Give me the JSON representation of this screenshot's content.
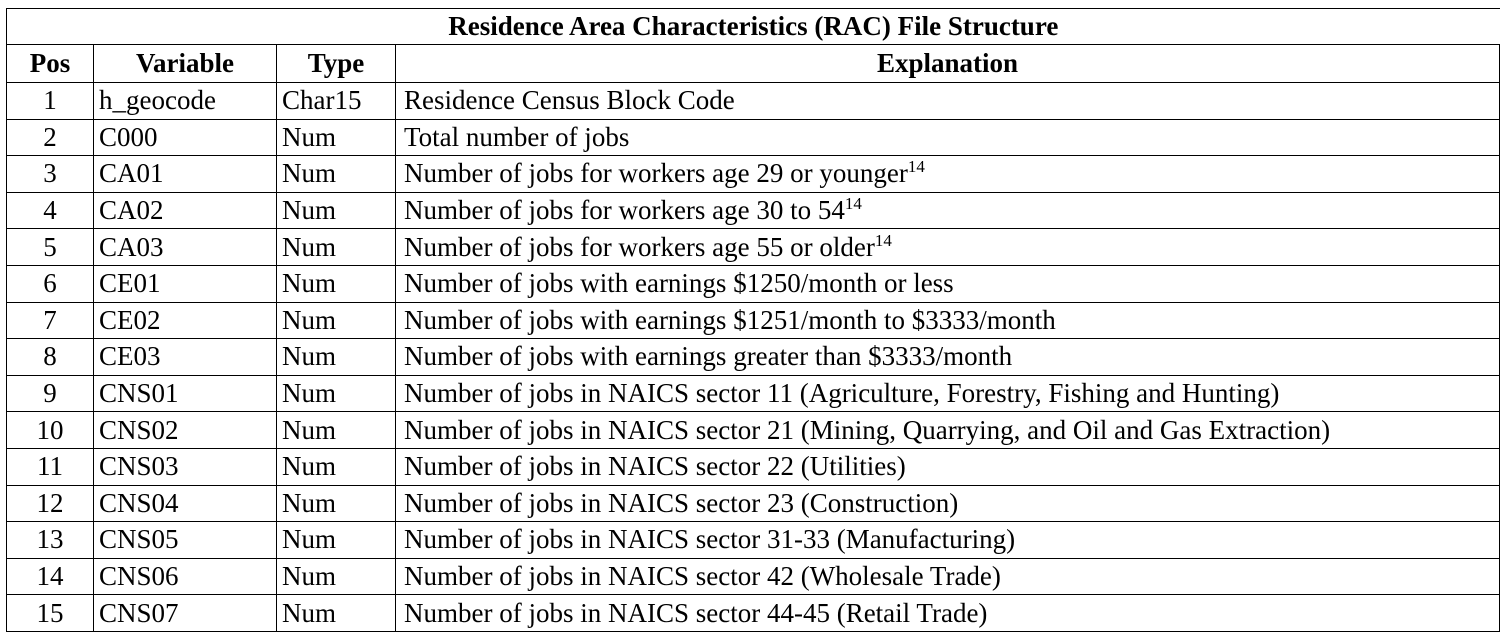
{
  "table": {
    "title": "Residence Area Characteristics (RAC) File Structure",
    "headers": {
      "pos": "Pos",
      "variable": "Variable",
      "type": "Type",
      "explanation": "Explanation"
    },
    "rows": [
      {
        "pos": "1",
        "variable": "h_geocode",
        "type": "Char15",
        "explanation": "Residence Census Block Code",
        "sup": ""
      },
      {
        "pos": "2",
        "variable": "C000",
        "type": "Num",
        "explanation": "Total number of jobs",
        "sup": ""
      },
      {
        "pos": "3",
        "variable": "CA01",
        "type": "Num",
        "explanation": "Number of jobs for workers age 29 or younger",
        "sup": "14"
      },
      {
        "pos": "4",
        "variable": "CA02",
        "type": "Num",
        "explanation": "Number of jobs for workers age 30 to 54",
        "sup": "14"
      },
      {
        "pos": "5",
        "variable": "CA03",
        "type": "Num",
        "explanation": "Number of jobs for workers age 55 or older",
        "sup": "14"
      },
      {
        "pos": "6",
        "variable": "CE01",
        "type": "Num",
        "explanation": "Number of jobs with earnings $1250/month or less",
        "sup": ""
      },
      {
        "pos": "7",
        "variable": "CE02",
        "type": "Num",
        "explanation": "Number of jobs with earnings $1251/month to $3333/month",
        "sup": ""
      },
      {
        "pos": "8",
        "variable": "CE03",
        "type": "Num",
        "explanation": "Number of jobs with earnings greater than $3333/month",
        "sup": ""
      },
      {
        "pos": "9",
        "variable": "CNS01",
        "type": "Num",
        "explanation": "Number of jobs in NAICS sector 11 (Agriculture, Forestry, Fishing and Hunting)",
        "sup": ""
      },
      {
        "pos": "10",
        "variable": "CNS02",
        "type": "Num",
        "explanation": "Number of jobs in NAICS sector 21 (Mining, Quarrying, and Oil and Gas Extraction)",
        "sup": ""
      },
      {
        "pos": "11",
        "variable": "CNS03",
        "type": "Num",
        "explanation": "Number of jobs in NAICS sector 22 (Utilities)",
        "sup": ""
      },
      {
        "pos": "12",
        "variable": "CNS04",
        "type": "Num",
        "explanation": "Number of jobs in NAICS sector 23 (Construction)",
        "sup": ""
      },
      {
        "pos": "13",
        "variable": "CNS05",
        "type": "Num",
        "explanation": "Number of jobs in NAICS sector 31-33 (Manufacturing)",
        "sup": ""
      },
      {
        "pos": "14",
        "variable": "CNS06",
        "type": "Num",
        "explanation": "Number of jobs in NAICS sector 42 (Wholesale Trade)",
        "sup": ""
      },
      {
        "pos": "15",
        "variable": "CNS07",
        "type": "Num",
        "explanation": "Number of jobs in NAICS sector 44-45 (Retail Trade)",
        "sup": ""
      }
    ]
  }
}
